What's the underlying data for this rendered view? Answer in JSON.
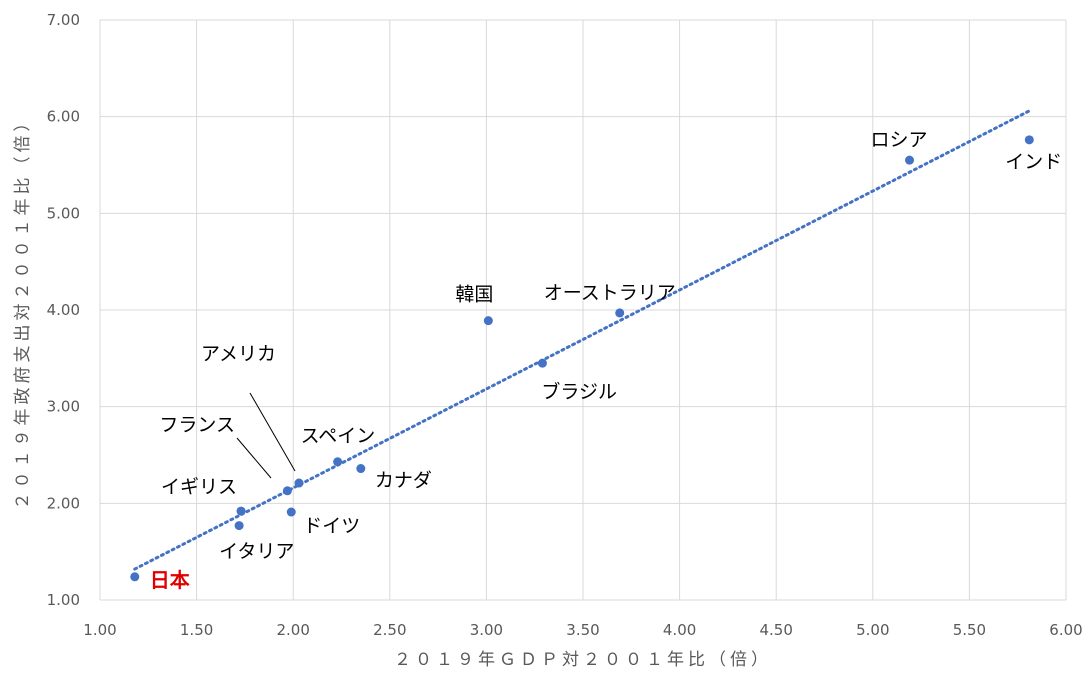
{
  "chart_data": {
    "type": "scatter",
    "xlabel": "２０１９年ＧＤＰ対２００１年比（倍）",
    "ylabel": "２０１９年政府支出対２００１年比（倍）",
    "xlim": [
      1.0,
      6.0
    ],
    "ylim": [
      1.0,
      7.0
    ],
    "x_ticks": [
      "1.00",
      "1.50",
      "2.00",
      "2.50",
      "3.00",
      "3.50",
      "4.00",
      "4.50",
      "5.00",
      "5.50",
      "6.00"
    ],
    "y_ticks": [
      "1.00",
      "2.00",
      "3.00",
      "4.00",
      "5.00",
      "6.00",
      "7.00"
    ],
    "grid": true,
    "marker_color": "#4472C4",
    "highlight_color": "#E00000",
    "trendline": {
      "style": "dotted",
      "color": "#4472C4",
      "x": [
        1.18,
        5.82
      ],
      "y": [
        1.32,
        6.07
      ]
    },
    "points": [
      {
        "label": "日本",
        "x": 1.18,
        "y": 1.24,
        "highlight": true
      },
      {
        "label": "イタリア",
        "x": 1.72,
        "y": 1.77
      },
      {
        "label": "イギリス",
        "x": 1.73,
        "y": 1.92
      },
      {
        "label": "フランス",
        "x": 1.97,
        "y": 2.13
      },
      {
        "label": "ドイツ",
        "x": 1.99,
        "y": 1.91
      },
      {
        "label": "アメリカ",
        "x": 2.03,
        "y": 2.21
      },
      {
        "label": "スペイン",
        "x": 2.23,
        "y": 2.43
      },
      {
        "label": "カナダ",
        "x": 2.35,
        "y": 2.36
      },
      {
        "label": "韓国",
        "x": 3.01,
        "y": 3.89
      },
      {
        "label": "ブラジル",
        "x": 3.29,
        "y": 3.45
      },
      {
        "label": "オーストラリア",
        "x": 3.69,
        "y": 3.97
      },
      {
        "label": "ロシア",
        "x": 5.19,
        "y": 5.55
      },
      {
        "label": "インド",
        "x": 5.81,
        "y": 5.76
      }
    ]
  }
}
